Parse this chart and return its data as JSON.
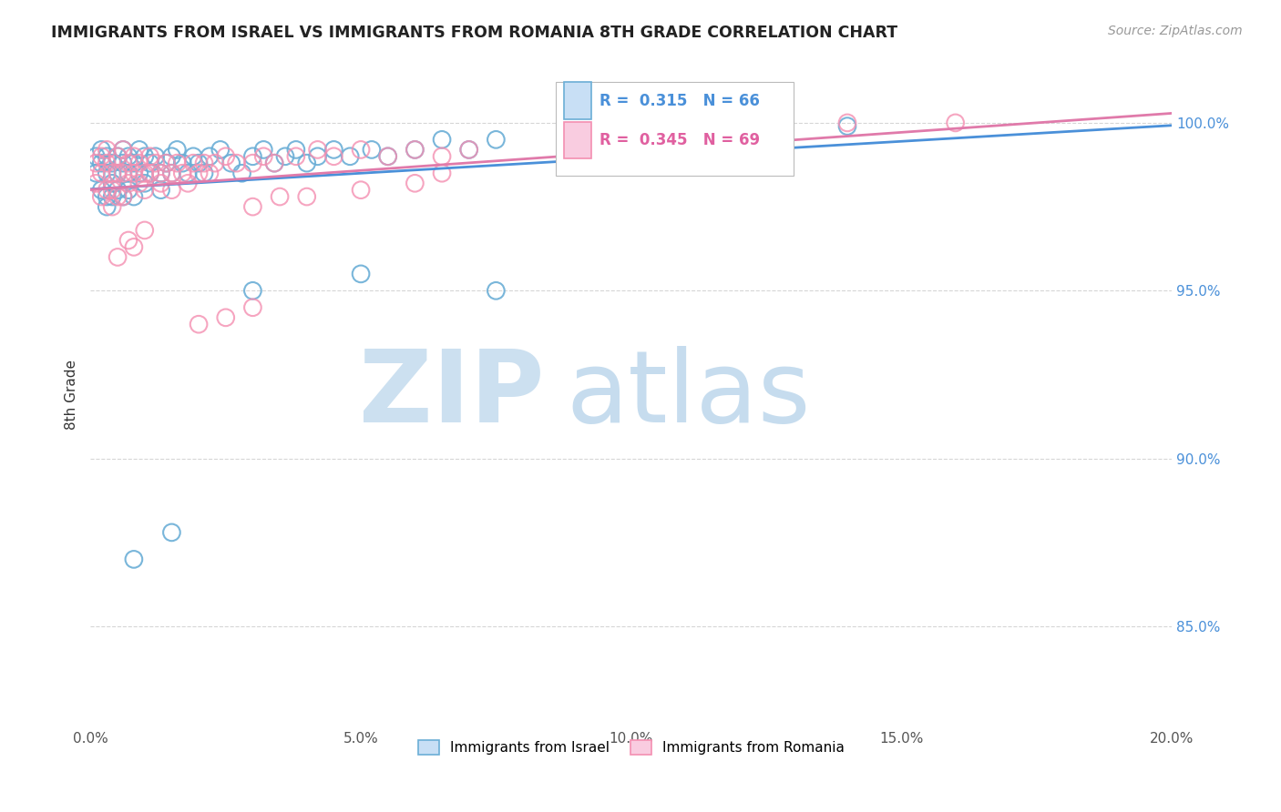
{
  "title": "IMMIGRANTS FROM ISRAEL VS IMMIGRANTS FROM ROMANIA 8TH GRADE CORRELATION CHART",
  "source": "Source: ZipAtlas.com",
  "ylabel": "8th Grade",
  "israel_color": "#6baed6",
  "romania_color": "#f48fb1",
  "israel_R": 0.315,
  "israel_N": 66,
  "romania_R": 0.345,
  "romania_N": 69,
  "trendline_israel_color": "#4a90d9",
  "trendline_romania_color": "#e07aaa",
  "xmin": 0.0,
  "xmax": 0.2,
  "ymin": 0.82,
  "ymax": 1.018,
  "xtick_vals": [
    0.0,
    0.05,
    0.1,
    0.15,
    0.2
  ],
  "xtick_labels": [
    "0.0%",
    "5.0%",
    "10.0%",
    "15.0%",
    "20.0%"
  ],
  "ytick_vals": [
    0.85,
    0.9,
    0.95,
    1.0
  ],
  "ytick_labels": [
    "85.0%",
    "90.0%",
    "95.0%",
    "100.0%"
  ],
  "israel_x": [
    0.001,
    0.001,
    0.002,
    0.002,
    0.002,
    0.003,
    0.003,
    0.003,
    0.003,
    0.004,
    0.004,
    0.004,
    0.005,
    0.005,
    0.005,
    0.006,
    0.006,
    0.006,
    0.007,
    0.007,
    0.007,
    0.008,
    0.008,
    0.009,
    0.009,
    0.01,
    0.01,
    0.011,
    0.011,
    0.012,
    0.013,
    0.013,
    0.014,
    0.015,
    0.015,
    0.016,
    0.017,
    0.018,
    0.019,
    0.02,
    0.021,
    0.022,
    0.024,
    0.026,
    0.028,
    0.03,
    0.032,
    0.034,
    0.036,
    0.038,
    0.04,
    0.042,
    0.045,
    0.048,
    0.052,
    0.055,
    0.06,
    0.065,
    0.07,
    0.075,
    0.008,
    0.015,
    0.14,
    0.03,
    0.05,
    0.075
  ],
  "israel_y": [
    0.99,
    0.985,
    0.992,
    0.988,
    0.98,
    0.99,
    0.985,
    0.978,
    0.975,
    0.988,
    0.982,
    0.978,
    0.99,
    0.985,
    0.98,
    0.992,
    0.988,
    0.978,
    0.99,
    0.985,
    0.98,
    0.988,
    0.978,
    0.992,
    0.985,
    0.99,
    0.982,
    0.988,
    0.985,
    0.99,
    0.985,
    0.98,
    0.988,
    0.99,
    0.985,
    0.992,
    0.988,
    0.985,
    0.99,
    0.988,
    0.985,
    0.99,
    0.992,
    0.988,
    0.985,
    0.99,
    0.992,
    0.988,
    0.99,
    0.992,
    0.988,
    0.99,
    0.992,
    0.99,
    0.992,
    0.99,
    0.992,
    0.995,
    0.992,
    0.995,
    0.87,
    0.878,
    0.999,
    0.95,
    0.955,
    0.95
  ],
  "romania_x": [
    0.001,
    0.001,
    0.002,
    0.002,
    0.002,
    0.003,
    0.003,
    0.003,
    0.004,
    0.004,
    0.004,
    0.005,
    0.005,
    0.005,
    0.006,
    0.006,
    0.006,
    0.007,
    0.007,
    0.008,
    0.008,
    0.009,
    0.009,
    0.01,
    0.01,
    0.011,
    0.011,
    0.012,
    0.013,
    0.013,
    0.014,
    0.015,
    0.015,
    0.016,
    0.017,
    0.018,
    0.019,
    0.02,
    0.021,
    0.022,
    0.023,
    0.025,
    0.027,
    0.03,
    0.032,
    0.034,
    0.038,
    0.042,
    0.045,
    0.05,
    0.055,
    0.06,
    0.065,
    0.07,
    0.005,
    0.007,
    0.008,
    0.01,
    0.03,
    0.035,
    0.04,
    0.05,
    0.06,
    0.065,
    0.14,
    0.16,
    0.02,
    0.025,
    0.03
  ],
  "romania_y": [
    0.988,
    0.982,
    0.99,
    0.985,
    0.978,
    0.992,
    0.988,
    0.98,
    0.985,
    0.98,
    0.975,
    0.99,
    0.985,
    0.978,
    0.992,
    0.985,
    0.978,
    0.988,
    0.982,
    0.99,
    0.985,
    0.988,
    0.982,
    0.985,
    0.98,
    0.99,
    0.985,
    0.988,
    0.985,
    0.982,
    0.988,
    0.985,
    0.98,
    0.988,
    0.985,
    0.982,
    0.988,
    0.985,
    0.988,
    0.985,
    0.988,
    0.99,
    0.988,
    0.988,
    0.99,
    0.988,
    0.99,
    0.992,
    0.99,
    0.992,
    0.99,
    0.992,
    0.99,
    0.992,
    0.96,
    0.965,
    0.963,
    0.968,
    0.975,
    0.978,
    0.978,
    0.98,
    0.982,
    0.985,
    1.0,
    1.0,
    0.94,
    0.942,
    0.945
  ],
  "watermark_zip_color": "#cce0f0",
  "watermark_atlas_color": "#b8d4ea"
}
